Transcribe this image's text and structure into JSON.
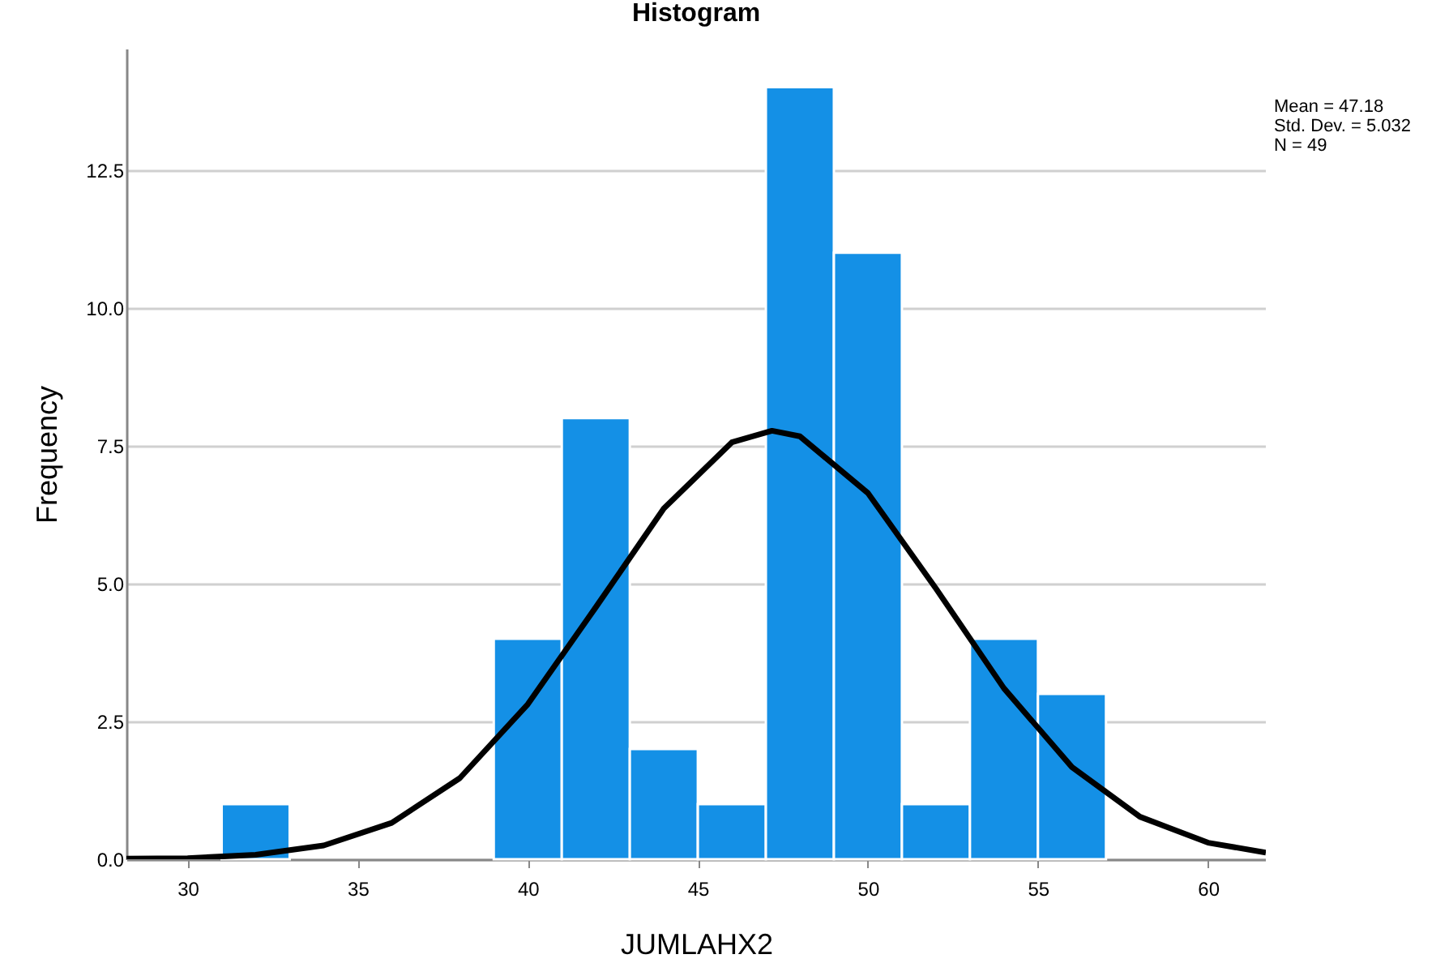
{
  "chart_data": {
    "type": "histogram",
    "title": "Histogram",
    "xlabel": "JUMLAHX2",
    "ylabel": "Frequency",
    "bins": [
      31,
      33,
      35,
      37,
      39,
      41,
      43,
      45,
      47,
      49,
      51,
      53,
      55,
      57
    ],
    "values": [
      1,
      0,
      0,
      0,
      4,
      8,
      2,
      1,
      14,
      11,
      1,
      4,
      3
    ],
    "color": "#1490e6",
    "series": [
      {
        "type": "line",
        "color": "#000000",
        "x": [
          28.2,
          30,
          32,
          34,
          36,
          38,
          40,
          42,
          44,
          46,
          47.18,
          48,
          50,
          52,
          54,
          56,
          58,
          60,
          61.7
        ],
        "values": [
          0.01,
          0.02,
          0.08,
          0.25,
          0.66,
          1.47,
          2.81,
          4.57,
          6.36,
          7.56,
          7.77,
          7.67,
          6.64,
          4.91,
          3.1,
          1.67,
          0.77,
          0.3,
          0.12
        ]
      }
    ],
    "xlim": [
      28.2,
      61.7
    ],
    "xticks": [
      30,
      35,
      40,
      45,
      50,
      55,
      60
    ],
    "ylim": [
      0,
      14.7
    ],
    "yticks": [
      {
        "value": 0,
        "label": "0.0"
      },
      {
        "value": 2.5,
        "label": "2.5"
      },
      {
        "value": 5,
        "label": "5.0"
      },
      {
        "value": 7.5,
        "label": "7.5"
      },
      {
        "value": 10,
        "label": "10.0"
      },
      {
        "value": 12.5,
        "label": "12.5"
      }
    ],
    "grid": "y",
    "legend": false,
    "annotations": [
      "Mean = 47.18",
      "Std. Dev. = 5.032",
      "N = 49"
    ]
  }
}
